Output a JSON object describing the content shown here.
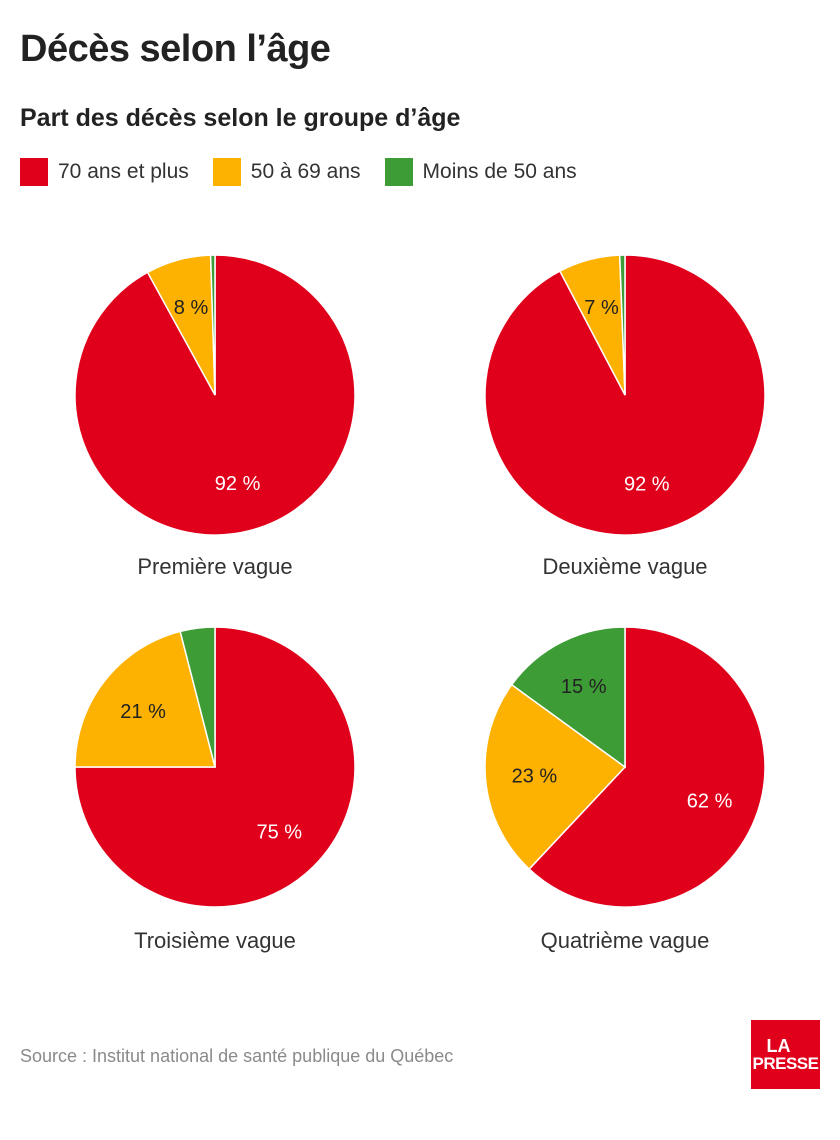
{
  "header": {
    "title": "Décès selon l’âge",
    "subtitle": "Part des décès selon le groupe d’âge"
  },
  "legend": [
    {
      "label": "70 ans et plus",
      "color": "#e0001b"
    },
    {
      "label": "50 à 69 ans",
      "color": "#fdb100"
    },
    {
      "label": "Moins de 50 ans",
      "color": "#3d9c35"
    }
  ],
  "chart_data": [
    {
      "type": "pie",
      "caption": "Première vague",
      "slices": [
        {
          "name": "70 ans et plus",
          "value": 92,
          "label": "92 %",
          "color": "#e0001b",
          "label_color": "#ffffff"
        },
        {
          "name": "50 à 69 ans",
          "value": 7.5,
          "label": "8 %",
          "color": "#fdb100",
          "label_color": "#222222"
        },
        {
          "name": "Moins de 50 ans",
          "value": 0.5,
          "label": "",
          "color": "#3d9c35",
          "label_color": "#222222"
        }
      ]
    },
    {
      "type": "pie",
      "caption": "Deuxième vague",
      "slices": [
        {
          "name": "70 ans et plus",
          "value": 92.3,
          "label": "92 %",
          "color": "#e0001b",
          "label_color": "#ffffff"
        },
        {
          "name": "50 à 69 ans",
          "value": 7.1,
          "label": "7 %",
          "color": "#fdb100",
          "label_color": "#222222"
        },
        {
          "name": "Moins de 50 ans",
          "value": 0.6,
          "label": "",
          "color": "#3d9c35",
          "label_color": "#222222"
        }
      ]
    },
    {
      "type": "pie",
      "caption": "Troisième vague",
      "slices": [
        {
          "name": "70 ans et plus",
          "value": 75,
          "label": "75 %",
          "color": "#e0001b",
          "label_color": "#ffffff"
        },
        {
          "name": "50 à 69 ans",
          "value": 21,
          "label": "21 %",
          "color": "#fdb100",
          "label_color": "#222222"
        },
        {
          "name": "Moins de 50 ans",
          "value": 4,
          "label": "",
          "color": "#3d9c35",
          "label_color": "#222222"
        }
      ]
    },
    {
      "type": "pie",
      "caption": "Quatrième vague",
      "slices": [
        {
          "name": "70 ans et plus",
          "value": 62,
          "label": "62 %",
          "color": "#e0001b",
          "label_color": "#ffffff"
        },
        {
          "name": "50 à 69 ans",
          "value": 23,
          "label": "23 %",
          "color": "#fdb100",
          "label_color": "#222222"
        },
        {
          "name": "Moins de 50 ans",
          "value": 15,
          "label": "15 %",
          "color": "#3d9c35",
          "label_color": "#222222"
        }
      ]
    }
  ],
  "footer": {
    "source": "Source : Institut national de santé publique du Québec",
    "logo_line1": "LA",
    "logo_line2": "PRESSE"
  }
}
